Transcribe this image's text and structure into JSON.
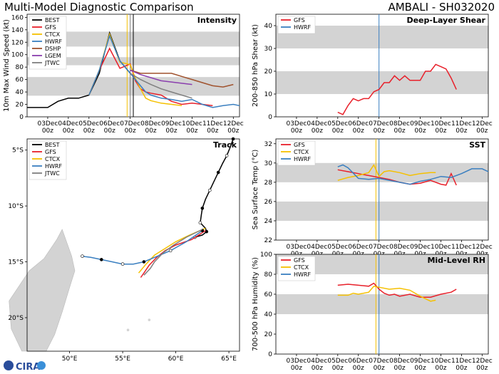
{
  "header": {
    "left_title": "Multi-Model Diagnostic Comparison",
    "right_title": "AMBALI - SH032020"
  },
  "logo_text": "CIRA",
  "date_ticks": [
    "03Dec\n00z",
    "04Dec\n00z",
    "05Dec\n00z",
    "06Dec\n00z",
    "07Dec\n00z",
    "08Dec\n00z",
    "09Dec\n00z",
    "10Dec\n00z",
    "11Dec\n00z",
    "12Dec\n00z"
  ],
  "colors": {
    "BEST": "#000000",
    "GFS": "#e8202a",
    "CTCX": "#f5c000",
    "HWRF": "#3a7fc0",
    "DSHP": "#a0522d",
    "LGEM": "#8b3fae",
    "JTWC": "#7f7f7f",
    "band": "#d3d3d3"
  },
  "chart_data": [
    {
      "id": "intensity",
      "type": "line",
      "title": "Intensity",
      "ylabel": "10m Max Wind Speed (kt)",
      "ylim": [
        0,
        165
      ],
      "yticks": [
        0,
        20,
        40,
        60,
        80,
        100,
        120,
        140,
        160
      ],
      "xlim": [
        2,
        12.3
      ],
      "bands": [
        [
          34,
          64
        ],
        [
          83,
          96
        ],
        [
          113,
          137
        ]
      ],
      "vlines": [
        {
          "x": 6.85,
          "color": "#f5c000"
        },
        {
          "x": 7.0,
          "color": "#7f7f7f"
        },
        {
          "x": 7.15,
          "color": "#000000"
        }
      ],
      "legend": [
        "BEST",
        "GFS",
        "CTCX",
        "HWRF",
        "DSHP",
        "LGEM",
        "JTWC"
      ],
      "series": [
        {
          "name": "BEST",
          "x": [
            2,
            3,
            3.5,
            4,
            4.5,
            5,
            5.5,
            6,
            6.5,
            7
          ],
          "y": [
            15,
            15,
            25,
            30,
            30,
            35,
            70,
            135,
            90,
            70
          ]
        },
        {
          "name": "GFS",
          "x": [
            5,
            5.5,
            6,
            6.5,
            7,
            7.25,
            7.5,
            7.75,
            8,
            8.5,
            9,
            9.5,
            10,
            10.5,
            11
          ],
          "y": [
            35,
            75,
            110,
            78,
            85,
            58,
            45,
            40,
            38,
            35,
            25,
            20,
            22,
            20,
            18
          ]
        },
        {
          "name": "CTCX",
          "x": [
            5,
            5.5,
            6,
            6.5,
            7,
            7.25,
            7.5,
            7.75,
            8,
            8.5,
            9,
            9.5
          ],
          "y": [
            35,
            75,
            133,
            88,
            84,
            62,
            45,
            30,
            26,
            22,
            20,
            18
          ]
        },
        {
          "name": "HWRF",
          "x": [
            5,
            5.5,
            6,
            6.5,
            7,
            7.25,
            7.5,
            7.75,
            8,
            8.5,
            9,
            9.5,
            10,
            10.5,
            11,
            11.5,
            12,
            12.3
          ],
          "y": [
            35,
            75,
            130,
            90,
            70,
            60,
            50,
            40,
            35,
            30,
            28,
            25,
            28,
            20,
            15,
            18,
            20,
            18
          ]
        },
        {
          "name": "DSHP",
          "x": [
            7,
            7.5,
            8,
            8.5,
            9,
            9.5,
            10,
            10.5,
            11,
            11.5,
            12
          ],
          "y": [
            75,
            70,
            70,
            70,
            70,
            65,
            60,
            55,
            50,
            48,
            52
          ]
        },
        {
          "name": "LGEM",
          "x": [
            7,
            7.5,
            8,
            8.5,
            9,
            9.5,
            10
          ],
          "y": [
            75,
            68,
            63,
            58,
            56,
            54,
            52
          ]
        },
        {
          "name": "JTWC",
          "x": [
            7,
            7.5,
            8,
            8.5,
            9,
            9.5,
            10
          ],
          "y": [
            70,
            60,
            52,
            45,
            40,
            35,
            30
          ]
        }
      ]
    },
    {
      "id": "track",
      "type": "scatter",
      "title": "Track",
      "xlim": [
        46,
        66
      ],
      "ylim": [
        -23,
        -4
      ],
      "xticks": [
        50,
        55,
        60,
        65
      ],
      "xtick_labels": [
        "50°E",
        "55°E",
        "60°E",
        "65°E"
      ],
      "yticks": [
        -5,
        -10,
        -15,
        -20
      ],
      "ytick_labels": [
        "5°S",
        "10°S",
        "15°S",
        "20°S"
      ],
      "legend": [
        "BEST",
        "GFS",
        "CTCX",
        "HWRF",
        "JTWC"
      ],
      "series": [
        {
          "name": "BEST",
          "lon": [
            65.4,
            65.1,
            64.8,
            64.4,
            64.0,
            63.6,
            63.2,
            62.8,
            62.5,
            62.4,
            62.3,
            62.8,
            62.9,
            62.5,
            61.8
          ],
          "lat": [
            -4.0,
            -4.8,
            -5.5,
            -6.2,
            -7.0,
            -7.8,
            -8.6,
            -9.4,
            -10.2,
            -10.8,
            -11.5,
            -12.0,
            -12.3,
            -12.6,
            -12.8
          ]
        },
        {
          "name": "GFS",
          "lon": [
            62.8,
            61.5,
            60.0,
            59.0,
            58.2,
            57.5,
            57.0,
            56.7
          ],
          "lat": [
            -12.2,
            -13.0,
            -13.5,
            -14.0,
            -14.6,
            -15.3,
            -16.0,
            -16.4
          ]
        },
        {
          "name": "CTCX",
          "lon": [
            62.8,
            61.3,
            60.0,
            59.0,
            58.0,
            57.2,
            56.5
          ],
          "lat": [
            -12.0,
            -12.6,
            -13.2,
            -13.8,
            -14.4,
            -15.2,
            -16.0
          ]
        },
        {
          "name": "HWRF",
          "lon": [
            62.5,
            61.0,
            59.5,
            58.0,
            57.0,
            56.0,
            55.0,
            54.0,
            53.0,
            52.0,
            51.2
          ],
          "lat": [
            -12.2,
            -13.2,
            -14.0,
            -14.6,
            -15.0,
            -15.2,
            -15.2,
            -15.0,
            -14.8,
            -14.6,
            -14.5
          ]
        },
        {
          "name": "JTWC",
          "lon": [
            62.5,
            61.0,
            59.8,
            58.8,
            58.0,
            57.6,
            57.0
          ],
          "lat": [
            -12.1,
            -12.8,
            -13.5,
            -14.2,
            -15.0,
            -15.6,
            -16.2
          ]
        }
      ]
    },
    {
      "id": "shear",
      "type": "line",
      "title": "Deep-Layer Shear",
      "ylabel": "200-850 hPa Shear (kt)",
      "ylim": [
        0,
        45
      ],
      "yticks": [
        0,
        10,
        20,
        30,
        40
      ],
      "xlim": [
        2,
        12.3
      ],
      "bands": [
        [
          10,
          20
        ],
        [
          30,
          40
        ]
      ],
      "vlines": [
        {
          "x": 7.0,
          "color": "#3a7fc0"
        }
      ],
      "legend": [
        "GFS",
        "HWRF"
      ],
      "series": [
        {
          "name": "GFS",
          "x": [
            5,
            5.25,
            5.5,
            5.75,
            6,
            6.25,
            6.5,
            6.75,
            7,
            7.25,
            7.5,
            7.75,
            8,
            8.25,
            8.5,
            8.75,
            9,
            9.25,
            9.5,
            9.75,
            10,
            10.25,
            10.5,
            10.75
          ],
          "y": [
            2,
            1,
            5,
            8,
            7,
            8,
            8,
            11,
            12,
            15,
            15,
            18,
            16,
            18,
            16,
            16,
            16,
            20,
            20,
            23,
            22,
            21,
            17,
            12
          ]
        }
      ]
    },
    {
      "id": "sst",
      "type": "line",
      "title": "SST",
      "ylabel": "Sea Surface Temp (°C)",
      "ylim": [
        22,
        32.5
      ],
      "yticks": [
        22,
        24,
        26,
        28,
        30,
        32
      ],
      "xlim": [
        2,
        12.3
      ],
      "bands": [
        [
          24,
          26
        ],
        [
          28,
          30
        ]
      ],
      "vlines": [
        {
          "x": 6.85,
          "color": "#f5c000"
        },
        {
          "x": 7.0,
          "color": "#3a7fc0"
        }
      ],
      "legend": [
        "GFS",
        "CTCX",
        "HWRF"
      ],
      "series": [
        {
          "name": "GFS",
          "x": [
            5,
            5.5,
            6,
            6.5,
            7,
            7.5,
            8,
            8.5,
            9,
            9.5,
            10,
            10.25,
            10.5,
            10.75
          ],
          "y": [
            29.3,
            29.1,
            28.9,
            28.7,
            28.5,
            28.3,
            28.0,
            27.8,
            27.9,
            28.2,
            27.8,
            27.7,
            28.9,
            27.7
          ]
        },
        {
          "name": "CTCX",
          "x": [
            5,
            5.5,
            6,
            6.5,
            6.75,
            7,
            7.25,
            7.5,
            8,
            8.5,
            9,
            9.5,
            9.75
          ],
          "y": [
            28.2,
            28.5,
            28.7,
            29.0,
            29.8,
            28.6,
            29.1,
            29.2,
            29.0,
            28.7,
            28.9,
            29.0,
            29.0
          ]
        },
        {
          "name": "HWRF",
          "x": [
            5,
            5.25,
            5.5,
            6,
            6.5,
            7,
            7.5,
            8,
            8.5,
            9,
            9.5,
            10,
            10.5,
            11,
            11.5,
            12,
            12.3
          ],
          "y": [
            29.6,
            29.8,
            29.5,
            28.4,
            28.3,
            28.4,
            28.2,
            28.0,
            27.8,
            28.1,
            28.3,
            28.6,
            28.5,
            28.9,
            29.4,
            29.4,
            29.1
          ]
        }
      ]
    },
    {
      "id": "rh",
      "type": "line",
      "title": "Mid-Level RH",
      "ylabel": "700-500 hPa Humidity (%)",
      "ylim": [
        0,
        100
      ],
      "yticks": [
        0,
        20,
        40,
        60,
        80,
        100
      ],
      "xlim": [
        2,
        12.3
      ],
      "bands": [
        [
          40,
          60
        ],
        [
          80,
          100
        ]
      ],
      "vlines": [
        {
          "x": 6.85,
          "color": "#f5c000"
        },
        {
          "x": 7.0,
          "color": "#3a7fc0"
        }
      ],
      "legend": [
        "GFS",
        "CTCX",
        "HWRF"
      ],
      "series": [
        {
          "name": "GFS",
          "x": [
            5,
            5.5,
            6,
            6.5,
            6.75,
            7,
            7.25,
            7.5,
            7.75,
            8,
            8.5,
            9,
            9.5,
            10,
            10.5,
            10.75
          ],
          "y": [
            69,
            70,
            69,
            68,
            71,
            65,
            61,
            59,
            60,
            58,
            60,
            57,
            57,
            60,
            62,
            65
          ]
        },
        {
          "name": "CTCX",
          "x": [
            5,
            5.5,
            5.75,
            6,
            6.5,
            6.75,
            7,
            7.5,
            8,
            8.5,
            9,
            9.5,
            9.75
          ],
          "y": [
            59,
            59,
            61,
            60,
            62,
            68,
            67,
            65,
            66,
            64,
            58,
            53,
            54
          ]
        }
      ]
    }
  ]
}
